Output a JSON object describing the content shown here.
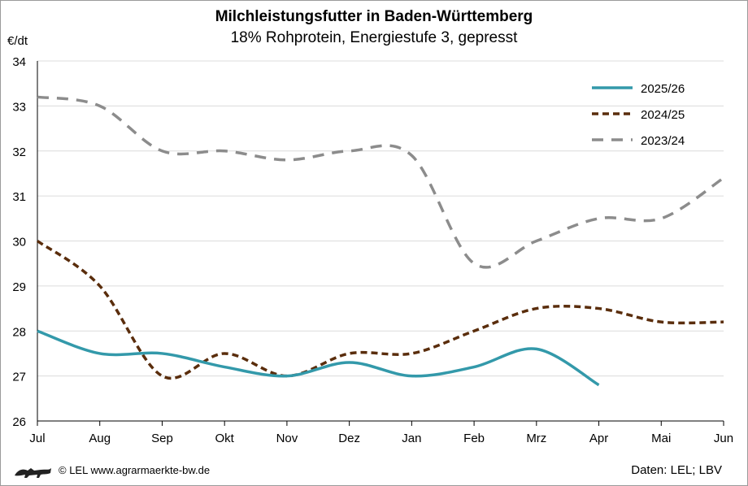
{
  "chart_data": {
    "type": "line",
    "title": "Milchleistungsfutter in Baden-Württemberg",
    "subtitle": "18% Rohprotein, Energiestufe 3, gepresst",
    "ylabel": "€/dt",
    "xlabel": "",
    "categories": [
      "Jul",
      "Aug",
      "Sep",
      "Okt",
      "Nov",
      "Dez",
      "Jan",
      "Feb",
      "Mrz",
      "Apr",
      "Mai",
      "Jun"
    ],
    "ylim": [
      26,
      34
    ],
    "yticks": [
      "26",
      "27",
      "28",
      "29",
      "30",
      "31",
      "32",
      "33",
      "34"
    ],
    "grid": true,
    "legend_position": "top-right",
    "series": [
      {
        "name": "2025/26",
        "color": "#3399aa",
        "style": "solid",
        "values": [
          28.0,
          27.5,
          27.5,
          27.2,
          27.0,
          27.3,
          27.0,
          27.2,
          27.6,
          26.8,
          null,
          null
        ]
      },
      {
        "name": "2024/25",
        "color": "#5a2d0c",
        "style": "dotted",
        "values": [
          30.0,
          29.0,
          27.0,
          27.5,
          27.0,
          27.5,
          27.5,
          28.0,
          28.5,
          28.5,
          28.2,
          28.2
        ]
      },
      {
        "name": "2023/24",
        "color": "#8c8c8c",
        "style": "dashed",
        "values": [
          33.2,
          33.0,
          32.0,
          32.0,
          31.8,
          32.0,
          31.9,
          29.5,
          30.0,
          30.5,
          30.5,
          31.4
        ]
      }
    ]
  },
  "footer": {
    "copyright": "© LEL www.agrarmaerkte-bw.de",
    "source": "Daten: LEL; LBV",
    "logo_icon": "lion-logo-icon"
  }
}
